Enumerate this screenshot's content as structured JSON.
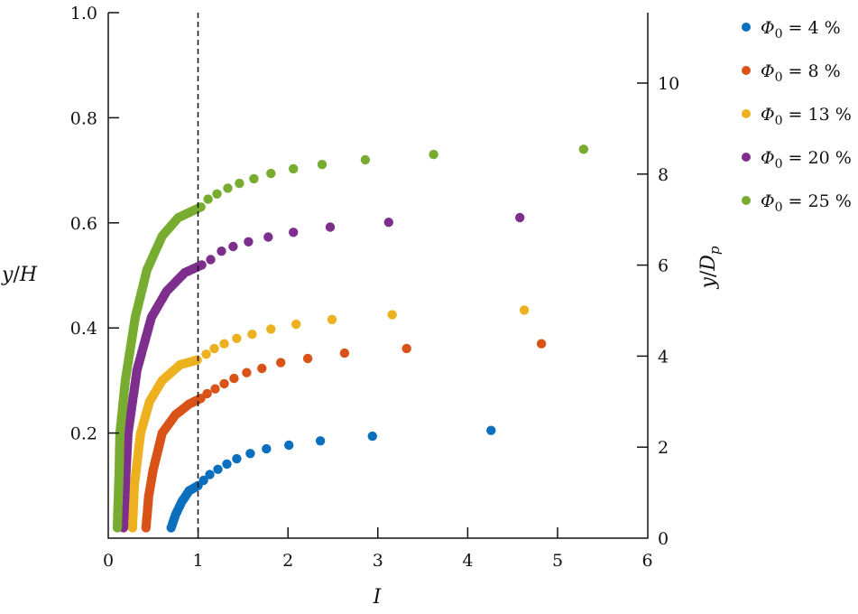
{
  "chart_data": {
    "type": "scatter",
    "title": "",
    "xlabel": "I",
    "ylabel": "y/H",
    "ylabel_right": "y/D_p",
    "xlim": [
      0,
      6
    ],
    "ylim": [
      0,
      1.0
    ],
    "ylim_right": [
      0,
      11.5
    ],
    "x_ticks": [
      "0",
      "1",
      "2",
      "3",
      "4",
      "5",
      "6"
    ],
    "y_ticks": [
      "0.2",
      "0.4",
      "0.6",
      "0.8",
      "1.0"
    ],
    "y_ticks_values": [
      0.2,
      0.4,
      0.6,
      0.8,
      1.0
    ],
    "y_right_ticks": [
      "0",
      "2",
      "4",
      "6",
      "8",
      "10"
    ],
    "y_right_ticks_values": [
      0,
      2,
      4,
      6,
      8,
      10
    ],
    "vertical_reference_line": {
      "x": 1,
      "style": "dashed"
    },
    "grid": false,
    "legend_position": "outside-right-top",
    "series": [
      {
        "name": "Φ0 = 4 %",
        "legend_phi": "Φ",
        "legend_sub": "0",
        "legend_rest": " = 4 %",
        "color": "#0b6fbd",
        "dense_curve": [
          [
            0.7,
            0.02
          ],
          [
            0.75,
            0.045
          ],
          [
            0.82,
            0.07
          ],
          [
            0.9,
            0.09
          ],
          [
            1.0,
            0.1
          ]
        ],
        "points": [
          [
            1.06,
            0.11
          ],
          [
            1.13,
            0.121
          ],
          [
            1.22,
            0.131
          ],
          [
            1.32,
            0.141
          ],
          [
            1.43,
            0.151
          ],
          [
            1.58,
            0.161
          ],
          [
            1.76,
            0.17
          ],
          [
            2.01,
            0.177
          ],
          [
            2.36,
            0.185
          ],
          [
            2.94,
            0.194
          ],
          [
            4.26,
            0.205
          ]
        ]
      },
      {
        "name": "Φ0 = 8 %",
        "legend_phi": "Φ",
        "legend_sub": "0",
        "legend_rest": " = 8 %",
        "color": "#d95319",
        "dense_curve": [
          [
            0.42,
            0.02
          ],
          [
            0.45,
            0.08
          ],
          [
            0.5,
            0.13
          ],
          [
            0.6,
            0.2
          ],
          [
            0.75,
            0.235
          ],
          [
            0.9,
            0.255
          ],
          [
            1.03,
            0.266
          ]
        ],
        "points": [
          [
            1.1,
            0.275
          ],
          [
            1.19,
            0.284
          ],
          [
            1.29,
            0.294
          ],
          [
            1.4,
            0.304
          ],
          [
            1.54,
            0.315
          ],
          [
            1.71,
            0.323
          ],
          [
            1.92,
            0.334
          ],
          [
            2.22,
            0.342
          ],
          [
            2.63,
            0.352
          ],
          [
            3.32,
            0.361
          ],
          [
            4.82,
            0.37
          ]
        ]
      },
      {
        "name": "Φ0 = 13 %",
        "legend_phi": "Φ",
        "legend_sub": "0",
        "legend_rest": " = 13 %",
        "color": "#edb120",
        "dense_curve": [
          [
            0.27,
            0.02
          ],
          [
            0.29,
            0.1
          ],
          [
            0.36,
            0.2
          ],
          [
            0.46,
            0.26
          ],
          [
            0.6,
            0.3
          ],
          [
            0.8,
            0.33
          ],
          [
            0.99,
            0.339
          ]
        ],
        "points": [
          [
            1.09,
            0.35
          ],
          [
            1.18,
            0.361
          ],
          [
            1.29,
            0.37
          ],
          [
            1.43,
            0.38
          ],
          [
            1.6,
            0.388
          ],
          [
            1.81,
            0.398
          ],
          [
            2.09,
            0.407
          ],
          [
            2.49,
            0.416
          ],
          [
            3.16,
            0.425
          ],
          [
            4.63,
            0.434
          ]
        ]
      },
      {
        "name": "Φ0 = 20 %",
        "legend_phi": "Φ",
        "legend_sub": "0",
        "legend_rest": " = 20 %",
        "color": "#7e2f8e",
        "dense_curve": [
          [
            0.17,
            0.02
          ],
          [
            0.19,
            0.1
          ],
          [
            0.22,
            0.2
          ],
          [
            0.32,
            0.32
          ],
          [
            0.48,
            0.42
          ],
          [
            0.65,
            0.47
          ],
          [
            0.85,
            0.505
          ],
          [
            1.04,
            0.52
          ]
        ],
        "points": [
          [
            1.14,
            0.53
          ],
          [
            1.26,
            0.546
          ],
          [
            1.39,
            0.555
          ],
          [
            1.56,
            0.564
          ],
          [
            1.78,
            0.573
          ],
          [
            2.06,
            0.582
          ],
          [
            2.47,
            0.592
          ],
          [
            3.12,
            0.601
          ],
          [
            4.58,
            0.61
          ]
        ]
      },
      {
        "name": "Φ0 = 25 %",
        "legend_phi": "Φ",
        "legend_sub": "0",
        "legend_rest": " = 25 %",
        "color": "#77ac30",
        "dense_curve": [
          [
            0.1,
            0.02
          ],
          [
            0.12,
            0.12
          ],
          [
            0.13,
            0.2
          ],
          [
            0.19,
            0.3
          ],
          [
            0.3,
            0.42
          ],
          [
            0.43,
            0.51
          ],
          [
            0.6,
            0.575
          ],
          [
            0.78,
            0.61
          ],
          [
            1.03,
            0.63
          ]
        ],
        "points": [
          [
            1.11,
            0.645
          ],
          [
            1.21,
            0.655
          ],
          [
            1.33,
            0.666
          ],
          [
            1.46,
            0.675
          ],
          [
            1.62,
            0.684
          ],
          [
            1.81,
            0.694
          ],
          [
            2.06,
            0.703
          ],
          [
            2.38,
            0.711
          ],
          [
            2.86,
            0.72
          ],
          [
            3.62,
            0.73
          ],
          [
            5.29,
            0.74
          ]
        ]
      }
    ]
  },
  "axes": {
    "x_label": "I",
    "y_label_left_num": "y",
    "y_label_left_den": "H",
    "y_label_right_num": "y",
    "y_label_right_den": "D",
    "y_label_right_sub": "p"
  }
}
